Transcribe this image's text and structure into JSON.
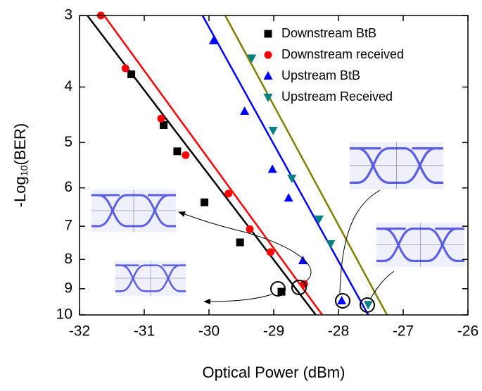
{
  "chart_data": {
    "type": "scatter",
    "xlabel": "Optical Power (dBm)",
    "ylabel_parts": [
      "-Log",
      "10",
      "(BER)"
    ],
    "xlim": [
      -32,
      -26
    ],
    "xticks": [
      -32,
      -31,
      -30,
      -29,
      -28,
      -27,
      -26
    ],
    "ylim": [
      3,
      10
    ],
    "yticks": [
      3,
      4,
      5,
      6,
      7,
      8,
      9,
      10
    ],
    "log_y": true,
    "legend": "upper right",
    "series": [
      {
        "name": "Downstream BtB",
        "color": "#000000",
        "line_color": "#000000",
        "marker": "square",
        "x": [
          -31.2,
          -30.7,
          -30.49,
          -30.07,
          -29.52,
          -28.88
        ],
        "values": [
          3.8,
          4.66,
          5.18,
          6.36,
          7.47,
          9.11
        ],
        "fit_x": [
          -31.88,
          -28.35
        ],
        "fit_y": [
          3,
          10
        ]
      },
      {
        "name": "Downstream received",
        "color": "#ff0000",
        "line_color": "#ff0000",
        "marker": "circle",
        "x": [
          -31.67,
          -31.29,
          -30.74,
          -30.36,
          -29.7,
          -29.37,
          -29.05,
          -28.53
        ],
        "values": [
          3.0,
          3.71,
          4.54,
          5.26,
          6.14,
          7.08,
          7.77,
          8.83
        ],
        "fit_x": [
          -31.62,
          -28.25
        ],
        "fit_y": [
          3,
          10
        ]
      },
      {
        "name": "Upstream BtB",
        "color": "#0000ff",
        "line_color": "#0000ff",
        "marker": "triangle-up",
        "x": [
          -29.93,
          -29.45,
          -29.02,
          -28.77,
          -28.55,
          -27.95
        ],
        "values": [
          3.32,
          4.41,
          5.57,
          6.25,
          8.04,
          9.45
        ],
        "fit_x": [
          -30.1,
          -27.54
        ],
        "fit_y": [
          3,
          10
        ]
      },
      {
        "name": "Upstream Received",
        "color": "#008080",
        "line_color": "#808000",
        "marker": "triangle-down",
        "x": [
          -29.34,
          -29.01,
          -28.72,
          -28.3,
          -28.12,
          -27.54
        ],
        "values": [
          3.56,
          4.76,
          5.77,
          6.8,
          7.51,
          9.59
        ],
        "fit_x": [
          -29.75,
          -27.25
        ],
        "fit_y": [
          3,
          10
        ]
      }
    ]
  }
}
